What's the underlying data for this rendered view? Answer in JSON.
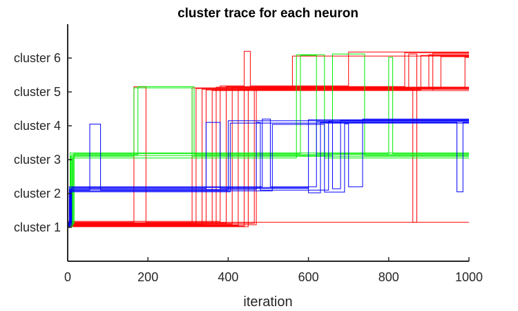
{
  "chart_data": {
    "type": "line",
    "title": "cluster trace for each neuron",
    "xlabel": "iteration",
    "ylabel": "",
    "xlim": [
      0,
      1000
    ],
    "ylim": [
      0,
      7
    ],
    "x_ticks": [
      0,
      200,
      400,
      600,
      800,
      1000
    ],
    "y_ticks": [
      1,
      2,
      3,
      4,
      5,
      6
    ],
    "y_tick_labels": [
      "cluster 1",
      "cluster 2",
      "cluster 3",
      "cluster 4",
      "cluster 5",
      "cluster 6"
    ],
    "grid": false,
    "legend": "none",
    "colors": {
      "red": "#ff0000",
      "green": "#00ee00",
      "blue": "#0000ff"
    },
    "series": [
      {
        "color": "red",
        "points": [
          [
            0,
            1.15
          ],
          [
            165,
            1.15
          ],
          [
            165,
            5.15
          ],
          [
            195,
            5.15
          ],
          [
            195,
            1.15
          ],
          [
            1000,
            1.15
          ]
        ]
      },
      {
        "color": "red",
        "points": [
          [
            0,
            1.12
          ],
          [
            310,
            1.12
          ],
          [
            310,
            5.12
          ],
          [
            1000,
            5.12
          ]
        ]
      },
      {
        "color": "red",
        "points": [
          [
            0,
            1.1
          ],
          [
            320,
            1.1
          ],
          [
            320,
            5.1
          ],
          [
            1000,
            5.1
          ]
        ]
      },
      {
        "color": "red",
        "points": [
          [
            0,
            1.08
          ],
          [
            335,
            1.08
          ],
          [
            335,
            5.08
          ],
          [
            1000,
            5.08
          ]
        ]
      },
      {
        "color": "red",
        "points": [
          [
            0,
            1.06
          ],
          [
            345,
            1.06
          ],
          [
            345,
            5.06
          ],
          [
            560,
            5.06
          ],
          [
            560,
            6.06
          ],
          [
            1000,
            6.06
          ]
        ]
      },
      {
        "color": "red",
        "points": [
          [
            0,
            1.04
          ],
          [
            360,
            1.04
          ],
          [
            360,
            5.04
          ],
          [
            1000,
            5.04
          ]
        ]
      },
      {
        "color": "red",
        "points": [
          [
            0,
            1.02
          ],
          [
            370,
            1.02
          ],
          [
            370,
            5.14
          ],
          [
            1000,
            5.14
          ]
        ]
      },
      {
        "color": "red",
        "points": [
          [
            0,
            1.18
          ],
          [
            380,
            1.18
          ],
          [
            380,
            5.18
          ],
          [
            440,
            5.18
          ],
          [
            440,
            6.2
          ],
          [
            455,
            6.2
          ],
          [
            455,
            5.18
          ],
          [
            700,
            5.18
          ],
          [
            700,
            6.18
          ],
          [
            1000,
            6.18
          ]
        ]
      },
      {
        "color": "red",
        "points": [
          [
            0,
            1.14
          ],
          [
            395,
            1.14
          ],
          [
            395,
            5.16
          ],
          [
            840,
            5.16
          ],
          [
            840,
            6.16
          ],
          [
            1000,
            6.16
          ]
        ]
      },
      {
        "color": "red",
        "points": [
          [
            0,
            1.1
          ],
          [
            410,
            1.1
          ],
          [
            410,
            5.12
          ],
          [
            850,
            5.12
          ],
          [
            850,
            6.12
          ],
          [
            870,
            6.12
          ],
          [
            870,
            5.12
          ],
          [
            1000,
            5.12
          ]
        ]
      },
      {
        "color": "red",
        "points": [
          [
            0,
            1.06
          ],
          [
            425,
            1.06
          ],
          [
            425,
            5.08
          ],
          [
            860,
            5.08
          ],
          [
            860,
            1.15
          ],
          [
            870,
            1.15
          ],
          [
            870,
            5.1
          ],
          [
            900,
            5.1
          ],
          [
            900,
            6.1
          ],
          [
            1000,
            6.1
          ]
        ]
      },
      {
        "color": "red",
        "points": [
          [
            0,
            1.04
          ],
          [
            440,
            1.04
          ],
          [
            440,
            5.06
          ],
          [
            880,
            5.06
          ],
          [
            880,
            6.08
          ],
          [
            1000,
            6.08
          ]
        ]
      },
      {
        "color": "red",
        "points": [
          [
            0,
            1.02
          ],
          [
            450,
            1.02
          ],
          [
            450,
            5.04
          ],
          [
            910,
            5.04
          ],
          [
            910,
            6.14
          ],
          [
            1000,
            6.14
          ]
        ]
      },
      {
        "color": "red",
        "points": [
          [
            0,
            1.12
          ],
          [
            465,
            1.12
          ],
          [
            465,
            5.1
          ],
          [
            930,
            5.1
          ],
          [
            930,
            6.04
          ],
          [
            1000,
            6.04
          ]
        ]
      },
      {
        "color": "red",
        "points": [
          [
            0,
            1.08
          ],
          [
            470,
            1.08
          ],
          [
            470,
            5.14
          ],
          [
            990,
            5.14
          ],
          [
            990,
            6.02
          ],
          [
            1000,
            6.02
          ]
        ]
      },
      {
        "color": "green",
        "points": [
          [
            0,
            1.05
          ],
          [
            8,
            1.05
          ],
          [
            8,
            3.1
          ],
          [
            165,
            3.1
          ],
          [
            165,
            5.12
          ],
          [
            310,
            5.12
          ],
          [
            310,
            3.1
          ],
          [
            1000,
            3.1
          ]
        ]
      },
      {
        "color": "green",
        "points": [
          [
            0,
            1.1
          ],
          [
            10,
            1.1
          ],
          [
            10,
            3.15
          ],
          [
            175,
            3.15
          ],
          [
            175,
            5.16
          ],
          [
            315,
            5.16
          ],
          [
            315,
            3.15
          ],
          [
            1000,
            3.15
          ]
        ]
      },
      {
        "color": "green",
        "points": [
          [
            0,
            1.02
          ],
          [
            12,
            1.02
          ],
          [
            12,
            3.05
          ],
          [
            570,
            3.05
          ],
          [
            570,
            6.1
          ],
          [
            640,
            6.1
          ],
          [
            640,
            3.05
          ],
          [
            1000,
            3.05
          ]
        ]
      },
      {
        "color": "green",
        "points": [
          [
            0,
            1.08
          ],
          [
            14,
            1.08
          ],
          [
            14,
            3.12
          ],
          [
            660,
            3.12
          ],
          [
            660,
            6.12
          ],
          [
            740,
            6.12
          ],
          [
            740,
            3.12
          ],
          [
            1000,
            3.12
          ]
        ]
      },
      {
        "color": "green",
        "points": [
          [
            0,
            1.12
          ],
          [
            16,
            1.12
          ],
          [
            16,
            3.18
          ],
          [
            580,
            3.18
          ],
          [
            580,
            6.08
          ],
          [
            620,
            6.08
          ],
          [
            620,
            3.18
          ],
          [
            800,
            3.18
          ],
          [
            800,
            6.02
          ],
          [
            810,
            6.02
          ],
          [
            810,
            3.18
          ],
          [
            1000,
            3.18
          ]
        ]
      },
      {
        "color": "green",
        "points": [
          [
            0,
            1.15
          ],
          [
            6,
            1.15
          ],
          [
            6,
            3.2
          ],
          [
            1000,
            3.2
          ]
        ]
      },
      {
        "color": "blue",
        "points": [
          [
            0,
            1.05
          ],
          [
            5,
            1.05
          ],
          [
            5,
            2.1
          ],
          [
            55,
            2.1
          ],
          [
            55,
            4.05
          ],
          [
            82,
            4.05
          ],
          [
            82,
            2.1
          ],
          [
            400,
            2.1
          ],
          [
            400,
            4.15
          ],
          [
            1000,
            4.15
          ]
        ]
      },
      {
        "color": "blue",
        "points": [
          [
            0,
            1.1
          ],
          [
            7,
            1.1
          ],
          [
            7,
            2.15
          ],
          [
            345,
            2.15
          ],
          [
            345,
            4.1
          ],
          [
            380,
            4.1
          ],
          [
            380,
            2.15
          ],
          [
            600,
            2.15
          ],
          [
            600,
            4.18
          ],
          [
            1000,
            4.18
          ]
        ]
      },
      {
        "color": "blue",
        "points": [
          [
            0,
            1.15
          ],
          [
            9,
            1.15
          ],
          [
            9,
            2.05
          ],
          [
            405,
            2.05
          ],
          [
            405,
            4.08
          ],
          [
            1000,
            4.08
          ]
        ]
      },
      {
        "color": "blue",
        "points": [
          [
            0,
            1.08
          ],
          [
            4,
            1.08
          ],
          [
            4,
            2.2
          ],
          [
            485,
            2.2
          ],
          [
            485,
            4.2
          ],
          [
            505,
            4.2
          ],
          [
            505,
            2.2
          ],
          [
            620,
            2.2
          ],
          [
            620,
            4.12
          ],
          [
            1000,
            4.12
          ]
        ]
      },
      {
        "color": "blue",
        "points": [
          [
            0,
            1.02
          ],
          [
            6,
            1.02
          ],
          [
            6,
            2.12
          ],
          [
            470,
            2.12
          ],
          [
            470,
            4.1
          ],
          [
            480,
            4.1
          ],
          [
            480,
            2.1
          ],
          [
            650,
            2.1
          ],
          [
            650,
            4.14
          ],
          [
            660,
            4.14
          ],
          [
            660,
            2.14
          ],
          [
            680,
            2.14
          ],
          [
            680,
            4.16
          ],
          [
            1000,
            4.16
          ]
        ]
      },
      {
        "color": "blue",
        "points": [
          [
            0,
            1.12
          ],
          [
            8,
            1.12
          ],
          [
            8,
            2.08
          ],
          [
            510,
            2.08
          ],
          [
            510,
            4.04
          ],
          [
            640,
            4.04
          ],
          [
            640,
            2.04
          ],
          [
            690,
            2.04
          ],
          [
            690,
            4.06
          ],
          [
            700,
            4.06
          ],
          [
            700,
            2.2
          ],
          [
            735,
            2.2
          ],
          [
            735,
            4.2
          ],
          [
            1000,
            4.2
          ]
        ]
      },
      {
        "color": "blue",
        "points": [
          [
            0,
            1.06
          ],
          [
            10,
            1.06
          ],
          [
            10,
            2.18
          ],
          [
            600,
            2.18
          ],
          [
            600,
            2.02
          ],
          [
            630,
            2.02
          ],
          [
            630,
            4.1
          ],
          [
            970,
            4.1
          ],
          [
            970,
            2.05
          ],
          [
            985,
            2.05
          ],
          [
            985,
            4.1
          ],
          [
            1000,
            4.1
          ]
        ]
      }
    ]
  }
}
